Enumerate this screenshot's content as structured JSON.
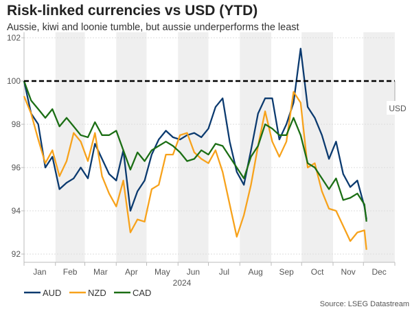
{
  "chart_data": {
    "type": "line",
    "title": "Risk-linked currencies vs USD (YTD)",
    "subtitle": "Aussie, kiwi and loonie tumble, but aussie underperforms the least",
    "xlabel": "2024",
    "ylabel": "",
    "ylim": [
      92,
      102
    ],
    "yticks": [
      "92",
      "94",
      "96",
      "98",
      "100",
      "102"
    ],
    "xlim": [
      "2024-01-01",
      "2024-12-31"
    ],
    "xticks": [
      "Jan",
      "Feb",
      "Mar",
      "Apr",
      "May",
      "Jun",
      "Jul",
      "Aug",
      "Sep",
      "Oct",
      "Nov",
      "Dec"
    ],
    "grid": true,
    "alternating_month_shading": true,
    "legend_position": "bottom-left",
    "reference_line": {
      "label": "USD",
      "value": 100,
      "style": "dashed",
      "color": "#000000"
    },
    "source": "Source: LSEG Datastream",
    "x": [
      "2024-01-01",
      "2024-01-08",
      "2024-01-15",
      "2024-01-22",
      "2024-01-29",
      "2024-02-05",
      "2024-02-12",
      "2024-02-19",
      "2024-02-26",
      "2024-03-04",
      "2024-03-11",
      "2024-03-18",
      "2024-03-25",
      "2024-04-01",
      "2024-04-08",
      "2024-04-15",
      "2024-04-22",
      "2024-04-29",
      "2024-05-06",
      "2024-05-13",
      "2024-05-20",
      "2024-05-27",
      "2024-06-03",
      "2024-06-10",
      "2024-06-17",
      "2024-06-24",
      "2024-07-01",
      "2024-07-08",
      "2024-07-15",
      "2024-07-22",
      "2024-07-29",
      "2024-08-05",
      "2024-08-12",
      "2024-08-19",
      "2024-08-26",
      "2024-09-02",
      "2024-09-09",
      "2024-09-16",
      "2024-09-23",
      "2024-09-30",
      "2024-10-07",
      "2024-10-14",
      "2024-10-21",
      "2024-10-28",
      "2024-11-04",
      "2024-11-11",
      "2024-11-18",
      "2024-11-25",
      "2024-12-02",
      "2024-12-04"
    ],
    "series": [
      {
        "name": "AUD",
        "color": "#0b3a6f",
        "values": [
          100,
          98.5,
          98.0,
          96.0,
          96.5,
          95.0,
          95.3,
          95.5,
          96.0,
          95.5,
          97.1,
          96.4,
          95.7,
          95.4,
          96.8,
          94.0,
          94.9,
          95.4,
          96.6,
          97.3,
          97.7,
          97.4,
          97.3,
          97.5,
          97.6,
          97.4,
          97.8,
          98.8,
          99.2,
          97.2,
          95.8,
          95.2,
          96.8,
          98.5,
          99.2,
          99.2,
          97.3,
          98.0,
          99.0,
          101.5,
          98.8,
          98.3,
          97.5,
          96.4,
          97.2,
          95.7,
          95.1,
          95.4,
          94.2,
          93.6
        ]
      },
      {
        "name": "NZD",
        "color": "#f7a21b",
        "values": [
          99.3,
          98.5,
          97.3,
          96.2,
          96.8,
          95.6,
          96.3,
          97.6,
          97.2,
          96.3,
          97.6,
          95.6,
          94.8,
          94.2,
          95.4,
          93.0,
          93.6,
          93.5,
          95.0,
          95.2,
          96.6,
          96.6,
          97.5,
          97.6,
          96.7,
          96.4,
          96.2,
          96.8,
          95.8,
          94.3,
          92.8,
          93.8,
          95.2,
          97.0,
          98.6,
          97.2,
          96.5,
          97.2,
          99.5,
          99.0,
          96.0,
          96.2,
          94.9,
          94.1,
          94.0,
          93.3,
          92.6,
          93.0,
          93.1,
          92.2
        ]
      },
      {
        "name": "CAD",
        "color": "#1b6e14",
        "values": [
          100,
          99.1,
          98.7,
          98.3,
          98.7,
          97.9,
          98.3,
          97.9,
          97.5,
          97.4,
          98.1,
          97.5,
          97.5,
          97.7,
          96.8,
          95.9,
          96.7,
          96.3,
          96.8,
          97.0,
          97.2,
          97.0,
          96.7,
          96.3,
          96.4,
          96.8,
          96.6,
          97.1,
          97.0,
          96.5,
          96.0,
          95.5,
          96.5,
          97.0,
          98.0,
          97.8,
          97.5,
          97.5,
          98.3,
          97.5,
          96.2,
          96.0,
          95.5,
          95.0,
          95.5,
          94.5,
          94.6,
          94.8,
          94.3,
          93.5
        ]
      }
    ]
  }
}
